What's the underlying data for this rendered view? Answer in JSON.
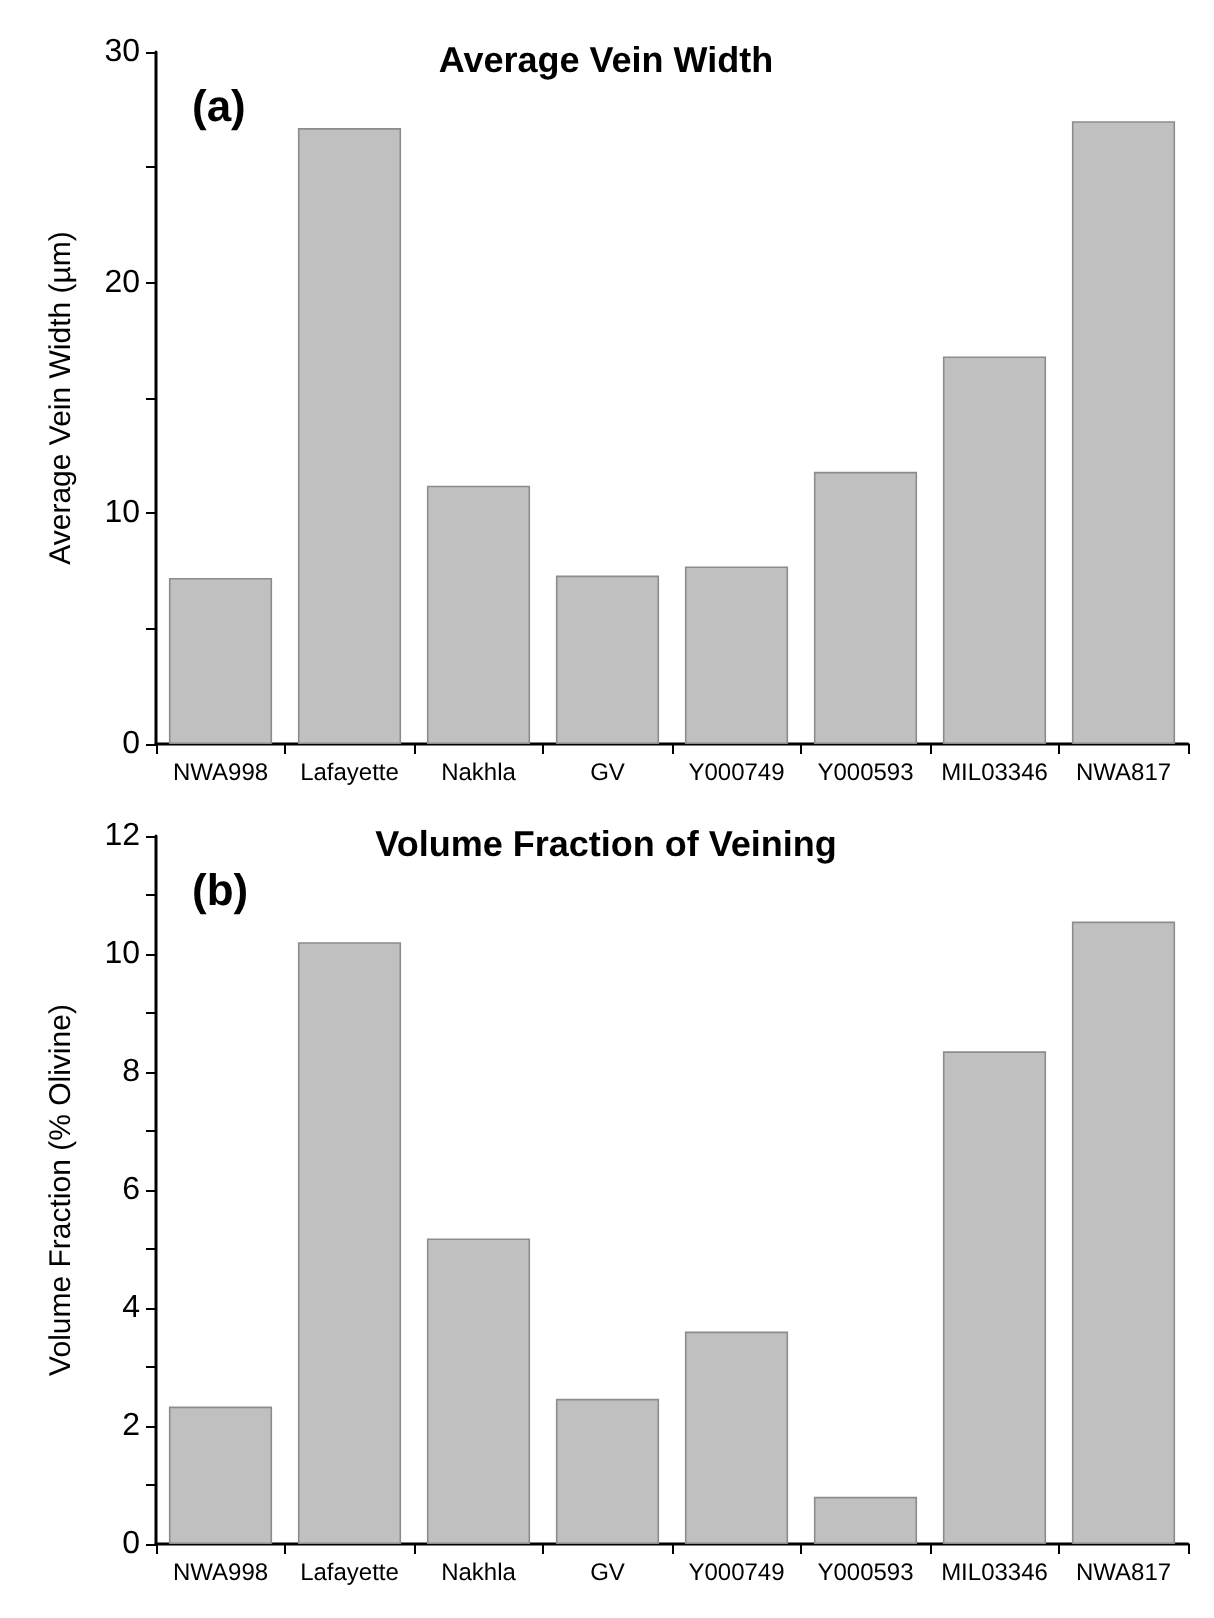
{
  "chart_data": [
    {
      "type": "bar",
      "title": "Average Vein Width",
      "ylabel": "Average Vein Width (µm)",
      "annotations": [
        "(a)"
      ],
      "categories": [
        "NWA998",
        "Lafayette",
        "Nakhla",
        "GV",
        "Y000749",
        "Y000593",
        "MIL03346",
        "NWA817"
      ],
      "values": [
        7.2,
        26.7,
        11.2,
        7.3,
        7.7,
        11.8,
        16.8,
        27.0
      ],
      "color": "#c0c0c0",
      "ylim": [
        0,
        30
      ],
      "yticks": [
        0,
        {
          "value": 5,
          "label": null
        },
        10,
        {
          "value": 15,
          "label": null
        },
        20,
        {
          "value": 25,
          "label": null
        },
        30
      ],
      "grid": false
    },
    {
      "type": "bar",
      "title": "Volume Fraction of Veining",
      "ylabel": "Volume Fraction (% Olivine)",
      "annotations": [
        "(b)"
      ],
      "categories": [
        "NWA998",
        "Lafayette",
        "Nakhla",
        "GV",
        "Y000749",
        "Y000593",
        "MIL03346",
        "NWA817"
      ],
      "values": [
        2.33,
        10.2,
        5.18,
        2.46,
        3.6,
        0.8,
        8.35,
        10.55
      ],
      "color": "#c0c0c0",
      "ylim": [
        0,
        12
      ],
      "yticks": [
        0,
        {
          "value": 1,
          "label": null
        },
        2,
        {
          "value": 3,
          "label": null
        },
        4,
        {
          "value": 5,
          "label": null
        },
        6,
        {
          "value": 7,
          "label": null
        },
        8,
        {
          "value": 9,
          "label": null
        },
        10,
        {
          "value": 11,
          "label": null
        },
        12
      ],
      "grid": false
    }
  ]
}
